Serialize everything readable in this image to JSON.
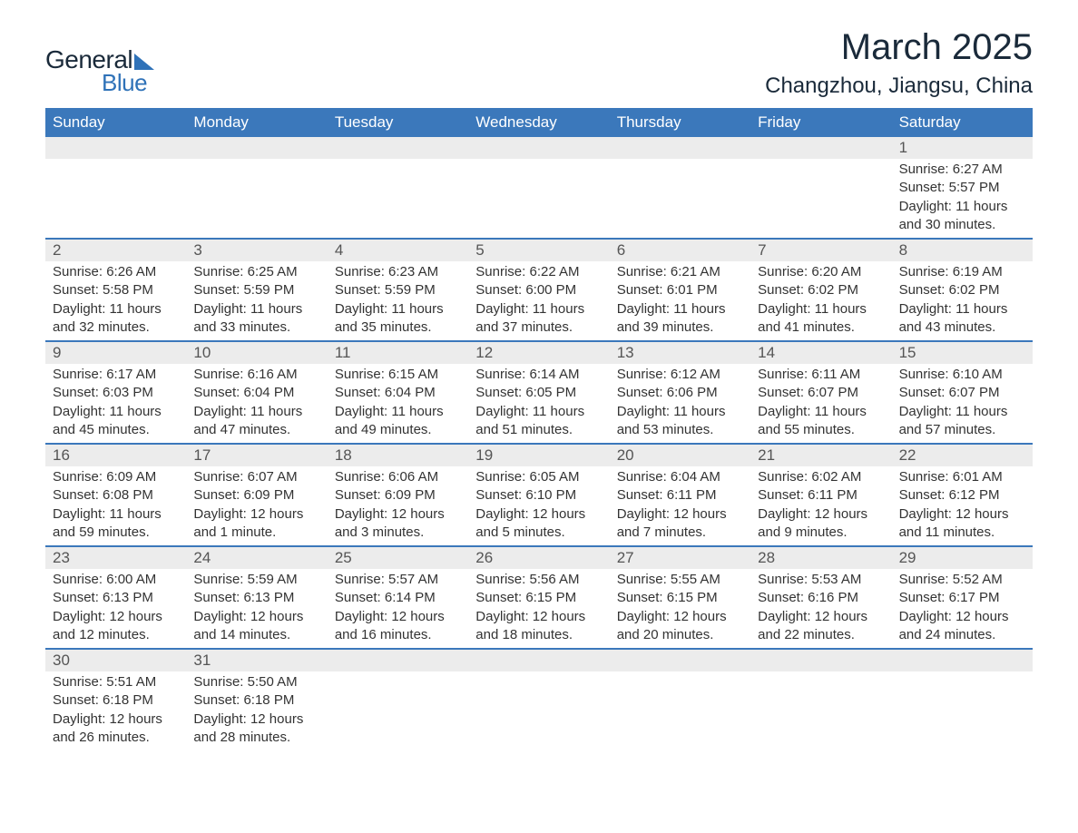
{
  "logo": {
    "text1": "General",
    "text2": "Blue"
  },
  "title": "March 2025",
  "subtitle": "Changzhou, Jiangsu, China",
  "header_bg": "#3b78bb",
  "header_fg": "#ffffff",
  "daynum_bg": "#ececec",
  "divider_color": "#3b78bb",
  "text_color": "#333333",
  "title_fontsize": 40,
  "subtitle_fontsize": 24,
  "cell_fontsize": 15,
  "day_headers": [
    "Sunday",
    "Monday",
    "Tuesday",
    "Wednesday",
    "Thursday",
    "Friday",
    "Saturday"
  ],
  "weeks": [
    [
      null,
      null,
      null,
      null,
      null,
      null,
      {
        "n": "1",
        "sr": "Sunrise: 6:27 AM",
        "ss": "Sunset: 5:57 PM",
        "dl": "Daylight: 11 hours and 30 minutes."
      }
    ],
    [
      {
        "n": "2",
        "sr": "Sunrise: 6:26 AM",
        "ss": "Sunset: 5:58 PM",
        "dl": "Daylight: 11 hours and 32 minutes."
      },
      {
        "n": "3",
        "sr": "Sunrise: 6:25 AM",
        "ss": "Sunset: 5:59 PM",
        "dl": "Daylight: 11 hours and 33 minutes."
      },
      {
        "n": "4",
        "sr": "Sunrise: 6:23 AM",
        "ss": "Sunset: 5:59 PM",
        "dl": "Daylight: 11 hours and 35 minutes."
      },
      {
        "n": "5",
        "sr": "Sunrise: 6:22 AM",
        "ss": "Sunset: 6:00 PM",
        "dl": "Daylight: 11 hours and 37 minutes."
      },
      {
        "n": "6",
        "sr": "Sunrise: 6:21 AM",
        "ss": "Sunset: 6:01 PM",
        "dl": "Daylight: 11 hours and 39 minutes."
      },
      {
        "n": "7",
        "sr": "Sunrise: 6:20 AM",
        "ss": "Sunset: 6:02 PM",
        "dl": "Daylight: 11 hours and 41 minutes."
      },
      {
        "n": "8",
        "sr": "Sunrise: 6:19 AM",
        "ss": "Sunset: 6:02 PM",
        "dl": "Daylight: 11 hours and 43 minutes."
      }
    ],
    [
      {
        "n": "9",
        "sr": "Sunrise: 6:17 AM",
        "ss": "Sunset: 6:03 PM",
        "dl": "Daylight: 11 hours and 45 minutes."
      },
      {
        "n": "10",
        "sr": "Sunrise: 6:16 AM",
        "ss": "Sunset: 6:04 PM",
        "dl": "Daylight: 11 hours and 47 minutes."
      },
      {
        "n": "11",
        "sr": "Sunrise: 6:15 AM",
        "ss": "Sunset: 6:04 PM",
        "dl": "Daylight: 11 hours and 49 minutes."
      },
      {
        "n": "12",
        "sr": "Sunrise: 6:14 AM",
        "ss": "Sunset: 6:05 PM",
        "dl": "Daylight: 11 hours and 51 minutes."
      },
      {
        "n": "13",
        "sr": "Sunrise: 6:12 AM",
        "ss": "Sunset: 6:06 PM",
        "dl": "Daylight: 11 hours and 53 minutes."
      },
      {
        "n": "14",
        "sr": "Sunrise: 6:11 AM",
        "ss": "Sunset: 6:07 PM",
        "dl": "Daylight: 11 hours and 55 minutes."
      },
      {
        "n": "15",
        "sr": "Sunrise: 6:10 AM",
        "ss": "Sunset: 6:07 PM",
        "dl": "Daylight: 11 hours and 57 minutes."
      }
    ],
    [
      {
        "n": "16",
        "sr": "Sunrise: 6:09 AM",
        "ss": "Sunset: 6:08 PM",
        "dl": "Daylight: 11 hours and 59 minutes."
      },
      {
        "n": "17",
        "sr": "Sunrise: 6:07 AM",
        "ss": "Sunset: 6:09 PM",
        "dl": "Daylight: 12 hours and 1 minute."
      },
      {
        "n": "18",
        "sr": "Sunrise: 6:06 AM",
        "ss": "Sunset: 6:09 PM",
        "dl": "Daylight: 12 hours and 3 minutes."
      },
      {
        "n": "19",
        "sr": "Sunrise: 6:05 AM",
        "ss": "Sunset: 6:10 PM",
        "dl": "Daylight: 12 hours and 5 minutes."
      },
      {
        "n": "20",
        "sr": "Sunrise: 6:04 AM",
        "ss": "Sunset: 6:11 PM",
        "dl": "Daylight: 12 hours and 7 minutes."
      },
      {
        "n": "21",
        "sr": "Sunrise: 6:02 AM",
        "ss": "Sunset: 6:11 PM",
        "dl": "Daylight: 12 hours and 9 minutes."
      },
      {
        "n": "22",
        "sr": "Sunrise: 6:01 AM",
        "ss": "Sunset: 6:12 PM",
        "dl": "Daylight: 12 hours and 11 minutes."
      }
    ],
    [
      {
        "n": "23",
        "sr": "Sunrise: 6:00 AM",
        "ss": "Sunset: 6:13 PM",
        "dl": "Daylight: 12 hours and 12 minutes."
      },
      {
        "n": "24",
        "sr": "Sunrise: 5:59 AM",
        "ss": "Sunset: 6:13 PM",
        "dl": "Daylight: 12 hours and 14 minutes."
      },
      {
        "n": "25",
        "sr": "Sunrise: 5:57 AM",
        "ss": "Sunset: 6:14 PM",
        "dl": "Daylight: 12 hours and 16 minutes."
      },
      {
        "n": "26",
        "sr": "Sunrise: 5:56 AM",
        "ss": "Sunset: 6:15 PM",
        "dl": "Daylight: 12 hours and 18 minutes."
      },
      {
        "n": "27",
        "sr": "Sunrise: 5:55 AM",
        "ss": "Sunset: 6:15 PM",
        "dl": "Daylight: 12 hours and 20 minutes."
      },
      {
        "n": "28",
        "sr": "Sunrise: 5:53 AM",
        "ss": "Sunset: 6:16 PM",
        "dl": "Daylight: 12 hours and 22 minutes."
      },
      {
        "n": "29",
        "sr": "Sunrise: 5:52 AM",
        "ss": "Sunset: 6:17 PM",
        "dl": "Daylight: 12 hours and 24 minutes."
      }
    ],
    [
      {
        "n": "30",
        "sr": "Sunrise: 5:51 AM",
        "ss": "Sunset: 6:18 PM",
        "dl": "Daylight: 12 hours and 26 minutes."
      },
      {
        "n": "31",
        "sr": "Sunrise: 5:50 AM",
        "ss": "Sunset: 6:18 PM",
        "dl": "Daylight: 12 hours and 28 minutes."
      },
      null,
      null,
      null,
      null,
      null
    ]
  ]
}
